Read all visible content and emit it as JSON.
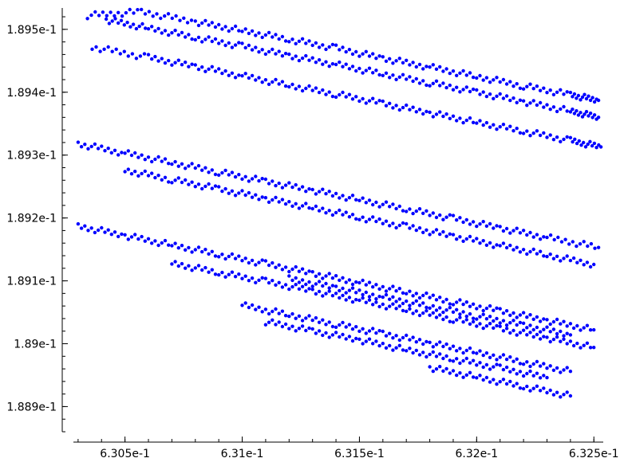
{
  "chart_data": {
    "type": "scatter",
    "title": "",
    "xlabel": "",
    "ylabel": "",
    "xlim": [
      0.63028,
      0.63254
    ],
    "ylim": [
      0.18886,
      0.189534
    ],
    "grid": false,
    "legend": "none",
    "marker_color": "#0000ff",
    "x_major_ticks": [
      0.6305,
      0.631,
      0.6315,
      0.632,
      0.6325
    ],
    "x_tick_labels": [
      "6.305e-1",
      "6.31e-1",
      "6.315e-1",
      "6.32e-1",
      "6.325e-1"
    ],
    "y_major_ticks": [
      0.1889,
      0.189,
      0.1891,
      0.1892,
      0.1893,
      0.1894,
      0.1895
    ],
    "y_tick_labels": [
      "1.889e-1",
      "1.89e-1",
      "1.891e-1",
      "1.892e-1",
      "1.893e-1",
      "1.894e-1",
      "1.895e-1"
    ],
    "series": [
      {
        "points": [
          [
            0.63034,
            0.189522
          ],
          [
            0.63057,
            0.189528
          ],
          [
            0.6308,
            0.189512
          ],
          [
            0.631,
            0.189498
          ],
          [
            0.6312,
            0.189484
          ],
          [
            0.6314,
            0.18947
          ],
          [
            0.6316,
            0.189454
          ],
          [
            0.6318,
            0.18944
          ],
          [
            0.632,
            0.189425
          ],
          [
            0.6322,
            0.18941
          ],
          [
            0.6324,
            0.189396
          ],
          [
            0.63252,
            0.189387
          ]
        ]
      },
      {
        "points": [
          [
            0.63042,
            0.189515
          ],
          [
            0.6306,
            0.189502
          ],
          [
            0.6308,
            0.189487
          ],
          [
            0.631,
            0.189473
          ],
          [
            0.6312,
            0.189458
          ],
          [
            0.6314,
            0.189444
          ],
          [
            0.6316,
            0.189429
          ],
          [
            0.6318,
            0.189415
          ],
          [
            0.632,
            0.1894
          ],
          [
            0.6322,
            0.189385
          ],
          [
            0.6324,
            0.18937
          ],
          [
            0.63252,
            0.18936
          ]
        ]
      },
      {
        "points": [
          [
            0.63036,
            0.189472
          ],
          [
            0.6306,
            0.189455
          ],
          [
            0.6308,
            0.189441
          ],
          [
            0.631,
            0.189426
          ],
          [
            0.6312,
            0.189411
          ],
          [
            0.6314,
            0.189397
          ],
          [
            0.6316,
            0.189382
          ],
          [
            0.6318,
            0.189367
          ],
          [
            0.632,
            0.189352
          ],
          [
            0.6322,
            0.189338
          ],
          [
            0.6324,
            0.189323
          ],
          [
            0.63253,
            0.189313
          ]
        ]
      },
      {
        "points": [
          [
            0.6303,
            0.189318
          ],
          [
            0.6305,
            0.189303
          ],
          [
            0.6307,
            0.189288
          ],
          [
            0.6309,
            0.189273
          ],
          [
            0.6311,
            0.189258
          ],
          [
            0.6313,
            0.189244
          ],
          [
            0.6315,
            0.189229
          ],
          [
            0.6317,
            0.189214
          ],
          [
            0.6319,
            0.189199
          ],
          [
            0.6321,
            0.189184
          ],
          [
            0.6323,
            0.189169
          ],
          [
            0.63252,
            0.189153
          ]
        ]
      },
      {
        "points": [
          [
            0.6305,
            0.189276
          ],
          [
            0.6307,
            0.189261
          ],
          [
            0.6309,
            0.189246
          ],
          [
            0.6311,
            0.189231
          ],
          [
            0.6313,
            0.189216
          ],
          [
            0.6315,
            0.189201
          ],
          [
            0.6317,
            0.189186
          ],
          [
            0.6319,
            0.189171
          ],
          [
            0.6321,
            0.189156
          ],
          [
            0.6323,
            0.189141
          ],
          [
            0.6325,
            0.189126
          ]
        ]
      },
      {
        "points": [
          [
            0.6303,
            0.189187
          ],
          [
            0.6305,
            0.189172
          ],
          [
            0.6307,
            0.189157
          ],
          [
            0.6309,
            0.189142
          ],
          [
            0.6311,
            0.189127
          ],
          [
            0.6313,
            0.189112
          ],
          [
            0.6315,
            0.189097
          ],
          [
            0.6317,
            0.189082
          ],
          [
            0.6319,
            0.189067
          ],
          [
            0.6321,
            0.189052
          ],
          [
            0.6323,
            0.189037
          ],
          [
            0.6325,
            0.189022
          ]
        ]
      },
      {
        "points": [
          [
            0.6307,
            0.189128
          ],
          [
            0.6309,
            0.189113
          ],
          [
            0.6311,
            0.189099
          ],
          [
            0.6313,
            0.189084
          ],
          [
            0.6315,
            0.189069
          ],
          [
            0.6317,
            0.189054
          ],
          [
            0.6319,
            0.189039
          ],
          [
            0.6321,
            0.189024
          ],
          [
            0.6323,
            0.189009
          ],
          [
            0.6325,
            0.188994
          ]
        ]
      },
      {
        "points": [
          [
            0.6312,
            0.189103
          ],
          [
            0.6314,
            0.189089
          ],
          [
            0.6316,
            0.189074
          ],
          [
            0.6318,
            0.189059
          ],
          [
            0.632,
            0.189044
          ],
          [
            0.6322,
            0.189029
          ],
          [
            0.6324,
            0.189014
          ]
        ]
      },
      {
        "points": [
          [
            0.631,
            0.189061
          ],
          [
            0.6312,
            0.189046
          ],
          [
            0.6314,
            0.189031
          ],
          [
            0.6316,
            0.189016
          ],
          [
            0.6318,
            0.189001
          ],
          [
            0.632,
            0.188986
          ],
          [
            0.6322,
            0.188971
          ],
          [
            0.6324,
            0.188956
          ]
        ]
      },
      {
        "points": [
          [
            0.6311,
            0.189035
          ],
          [
            0.6313,
            0.18902
          ],
          [
            0.6315,
            0.189006
          ],
          [
            0.6317,
            0.18899
          ],
          [
            0.6319,
            0.188976
          ],
          [
            0.6321,
            0.188961
          ],
          [
            0.6323,
            0.188946
          ]
        ]
      },
      {
        "points": [
          [
            0.6318,
            0.188962
          ],
          [
            0.632,
            0.188947
          ],
          [
            0.6322,
            0.188932
          ],
          [
            0.6324,
            0.188917
          ]
        ]
      }
    ]
  }
}
